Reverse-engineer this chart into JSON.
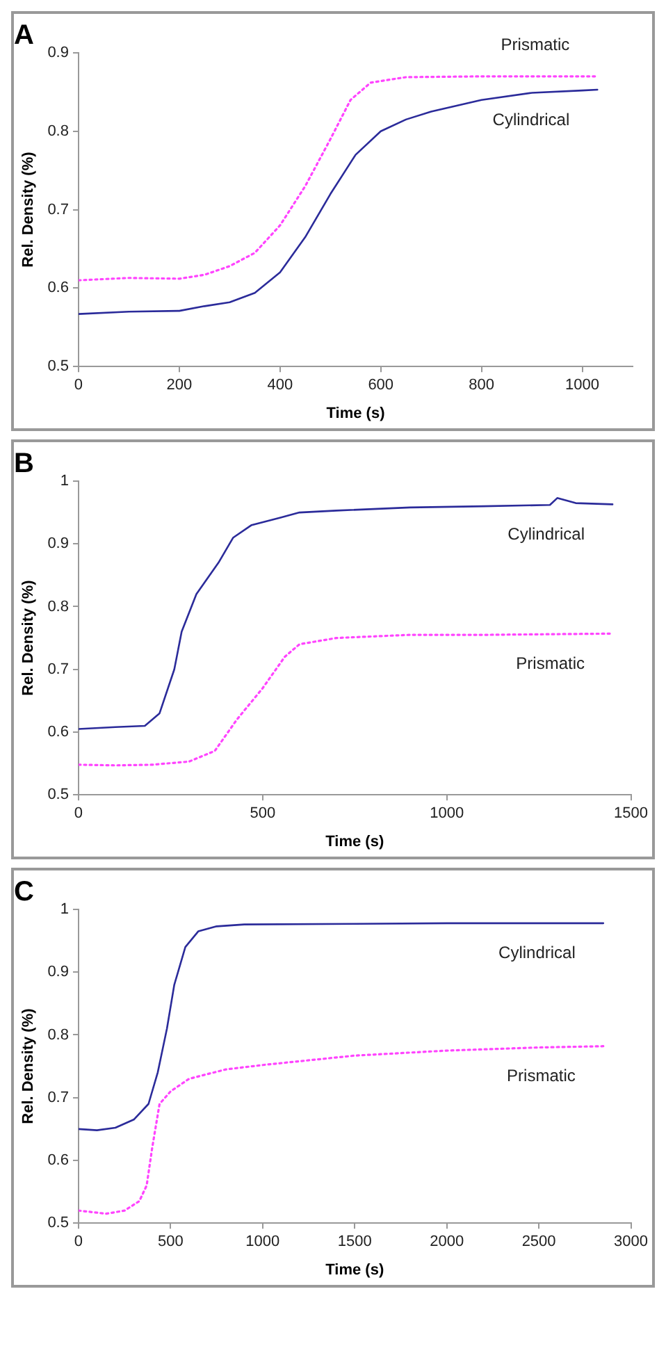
{
  "chart_data": [
    {
      "type": "line",
      "title": "A",
      "xlabel": "Time (s)",
      "ylabel": "Rel. Density (%)",
      "xlim": [
        0,
        1100
      ],
      "xticks": [
        0,
        200,
        400,
        600,
        800,
        1000
      ],
      "ylim": [
        0.5,
        0.9
      ],
      "yticks": [
        0.5,
        0.6,
        0.7,
        0.8,
        0.9
      ],
      "grid": false,
      "legend": false,
      "marker": "none",
      "series": [
        {
          "name": "Prismatic",
          "color": "#ff44ff",
          "line_style": "dotted",
          "x": [
            0,
            100,
            200,
            250,
            300,
            350,
            400,
            450,
            500,
            540,
            580,
            650,
            800,
            1030
          ],
          "values": [
            0.61,
            0.613,
            0.612,
            0.617,
            0.628,
            0.645,
            0.68,
            0.73,
            0.79,
            0.84,
            0.862,
            0.869,
            0.87,
            0.87
          ]
        },
        {
          "name": "Cylindrical",
          "color": "#2b2b9a",
          "line_style": "solid",
          "x": [
            0,
            100,
            200,
            250,
            300,
            350,
            400,
            450,
            500,
            550,
            600,
            650,
            700,
            800,
            900,
            1000,
            1030
          ],
          "values": [
            0.567,
            0.57,
            0.571,
            0.577,
            0.582,
            0.594,
            0.62,
            0.665,
            0.72,
            0.77,
            0.8,
            0.815,
            0.825,
            0.84,
            0.849,
            0.852,
            0.853
          ]
        }
      ]
    },
    {
      "type": "line",
      "title": "B",
      "xlabel": "Time (s)",
      "ylabel": "Rel. Density (%)",
      "xlim": [
        0,
        1500
      ],
      "xticks": [
        0,
        500,
        1000,
        1500
      ],
      "ylim": [
        0.5,
        1
      ],
      "yticks": [
        0.5,
        0.6,
        0.7,
        0.8,
        0.9,
        1
      ],
      "grid": false,
      "legend": false,
      "marker": "none",
      "series": [
        {
          "name": "Cylindrical",
          "color": "#2b2b9a",
          "line_style": "solid",
          "x": [
            0,
            100,
            180,
            220,
            260,
            280,
            320,
            380,
            420,
            470,
            550,
            600,
            700,
            900,
            1100,
            1280,
            1300,
            1350,
            1450
          ],
          "values": [
            0.605,
            0.608,
            0.61,
            0.63,
            0.7,
            0.76,
            0.82,
            0.87,
            0.91,
            0.93,
            0.942,
            0.95,
            0.953,
            0.958,
            0.96,
            0.962,
            0.973,
            0.965,
            0.963
          ]
        },
        {
          "name": "Prismatic",
          "color": "#ff44ff",
          "line_style": "dotted",
          "x": [
            0,
            100,
            200,
            300,
            370,
            430,
            500,
            560,
            600,
            700,
            900,
            1100,
            1450
          ],
          "values": [
            0.548,
            0.547,
            0.548,
            0.553,
            0.57,
            0.62,
            0.67,
            0.72,
            0.74,
            0.75,
            0.755,
            0.755,
            0.757
          ]
        }
      ]
    },
    {
      "type": "line",
      "title": "C",
      "xlabel": "Time (s)",
      "ylabel": "Rel. Density (%)",
      "xlim": [
        0,
        3000
      ],
      "xticks": [
        0,
        500,
        1000,
        1500,
        2000,
        2500,
        3000
      ],
      "ylim": [
        0.5,
        1
      ],
      "yticks": [
        0.5,
        0.6,
        0.7,
        0.8,
        0.9,
        1
      ],
      "grid": false,
      "legend": false,
      "marker": "none",
      "series": [
        {
          "name": "Cylindrical",
          "color": "#2b2b9a",
          "line_style": "solid",
          "x": [
            0,
            100,
            200,
            300,
            380,
            430,
            480,
            520,
            580,
            650,
            750,
            900,
            1500,
            2000,
            2850
          ],
          "values": [
            0.65,
            0.648,
            0.652,
            0.665,
            0.69,
            0.74,
            0.81,
            0.88,
            0.94,
            0.965,
            0.973,
            0.976,
            0.977,
            0.978,
            0.978
          ]
        },
        {
          "name": "Prismatic",
          "color": "#ff44ff",
          "line_style": "dotted",
          "x": [
            0,
            150,
            250,
            330,
            370,
            400,
            440,
            500,
            600,
            800,
            1000,
            1500,
            2000,
            2500,
            2850
          ],
          "values": [
            0.52,
            0.515,
            0.52,
            0.535,
            0.56,
            0.62,
            0.69,
            0.71,
            0.73,
            0.745,
            0.752,
            0.767,
            0.775,
            0.78,
            0.782
          ]
        }
      ]
    }
  ]
}
